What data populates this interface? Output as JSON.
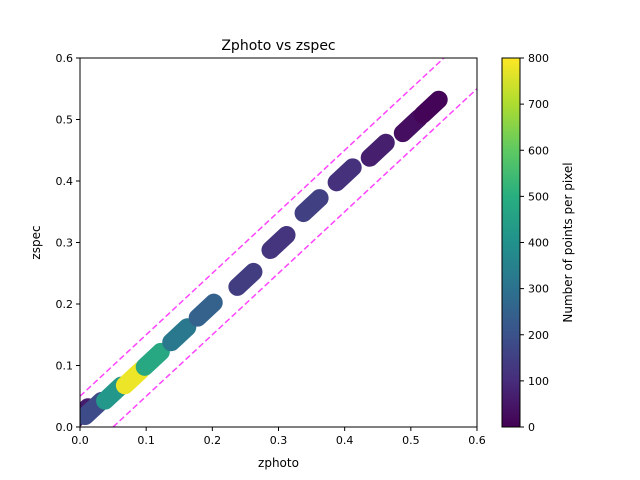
{
  "chart_data": {
    "type": "heatmap",
    "title": "Zphoto vs zspec",
    "xlabel": "zphoto",
    "ylabel": "zspec",
    "xlim": [
      0.0,
      0.6
    ],
    "ylim": [
      0.0,
      0.6
    ],
    "xticks": [
      "0.0",
      "0.1",
      "0.2",
      "0.3",
      "0.4",
      "0.5",
      "0.6"
    ],
    "yticks": [
      "0.0",
      "0.1",
      "0.2",
      "0.3",
      "0.4",
      "0.5",
      "0.6"
    ],
    "colormap": "viridis",
    "colorbar": {
      "label": "Number of points per pixel",
      "range": [
        0,
        800
      ],
      "ticks": [
        "0",
        "100",
        "200",
        "300",
        "400",
        "500",
        "600",
        "700",
        "800"
      ]
    },
    "density_ridge": [
      {
        "x": 0.0,
        "y": 0.02,
        "count": 60
      },
      {
        "x": 0.02,
        "y": 0.03,
        "count": 180
      },
      {
        "x": 0.05,
        "y": 0.055,
        "count": 420
      },
      {
        "x": 0.08,
        "y": 0.08,
        "count": 780
      },
      {
        "x": 0.11,
        "y": 0.11,
        "count": 480
      },
      {
        "x": 0.15,
        "y": 0.15,
        "count": 320
      },
      {
        "x": 0.19,
        "y": 0.19,
        "count": 250
      },
      {
        "x": 0.25,
        "y": 0.24,
        "count": 140
      },
      {
        "x": 0.3,
        "y": 0.3,
        "count": 120
      },
      {
        "x": 0.35,
        "y": 0.36,
        "count": 150
      },
      {
        "x": 0.4,
        "y": 0.41,
        "count": 110
      },
      {
        "x": 0.45,
        "y": 0.45,
        "count": 70
      },
      {
        "x": 0.5,
        "y": 0.49,
        "count": 30
      },
      {
        "x": 0.53,
        "y": 0.52,
        "count": 10
      }
    ],
    "guide_lines": [
      {
        "style": "dashed",
        "color": "#ff44ff",
        "points": [
          [
            0.0,
            0.05
          ],
          [
            0.55,
            0.6
          ]
        ]
      },
      {
        "style": "dashed",
        "color": "#ff44ff",
        "points": [
          [
            0.05,
            0.0
          ],
          [
            0.6,
            0.55
          ]
        ]
      }
    ],
    "grid": false
  }
}
